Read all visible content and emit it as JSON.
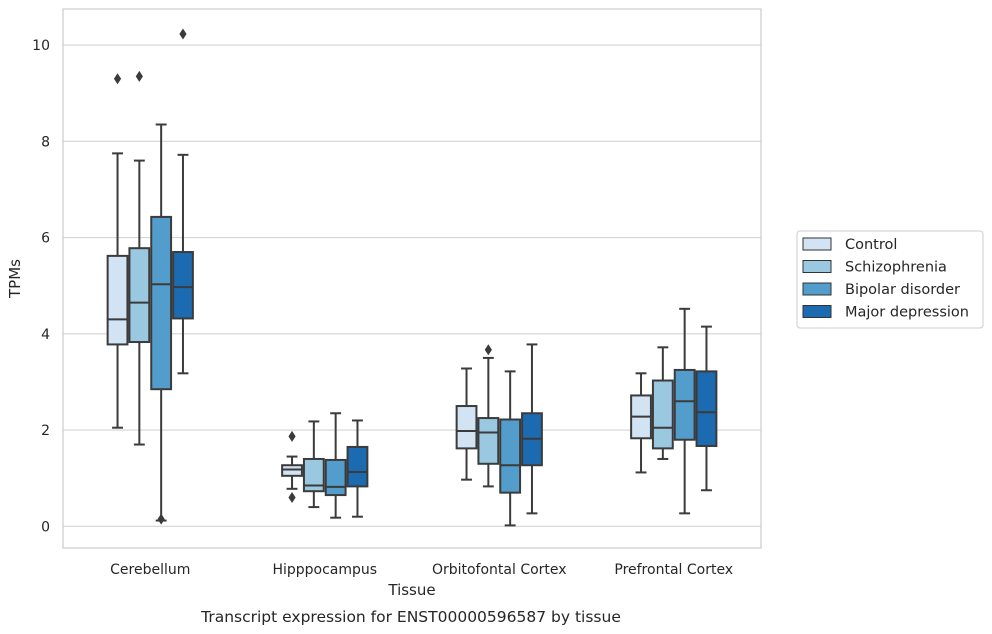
{
  "chart_data": {
    "type": "box",
    "xlabel": "Tissue",
    "ylabel": "TPMs",
    "caption": "Transcript expression for ENST00000596587 by tissue",
    "ylim": [
      -0.45,
      10.75
    ],
    "yticks": [
      0,
      2,
      4,
      6,
      8,
      10
    ],
    "grid": "horizontal",
    "legend_position": "right",
    "categories": [
      "Cerebellum",
      "Hipppocampus",
      "Orbitofontal Cortex",
      "Prefrontal Cortex"
    ],
    "series": [
      {
        "name": "Control",
        "color": "#d2e3f3",
        "boxes": [
          {
            "whisker_low": 2.05,
            "q1": 3.78,
            "median": 4.3,
            "q3": 5.62,
            "whisker_high": 7.75,
            "outliers": [
              9.3
            ]
          },
          {
            "whisker_low": 0.78,
            "q1": 1.05,
            "median": 1.18,
            "q3": 1.27,
            "whisker_high": 1.45,
            "outliers": [
              1.87,
              0.6
            ]
          },
          {
            "whisker_low": 0.97,
            "q1": 1.62,
            "median": 1.98,
            "q3": 2.5,
            "whisker_high": 3.28,
            "outliers": []
          },
          {
            "whisker_low": 1.12,
            "q1": 1.83,
            "median": 2.28,
            "q3": 2.72,
            "whisker_high": 3.18,
            "outliers": []
          }
        ]
      },
      {
        "name": "Schizophrenia",
        "color": "#9ac8e0",
        "boxes": [
          {
            "whisker_low": 1.7,
            "q1": 3.83,
            "median": 4.65,
            "q3": 5.78,
            "whisker_high": 7.6,
            "outliers": [
              9.35
            ]
          },
          {
            "whisker_low": 0.4,
            "q1": 0.73,
            "median": 0.85,
            "q3": 1.4,
            "whisker_high": 2.18,
            "outliers": []
          },
          {
            "whisker_low": 0.83,
            "q1": 1.3,
            "median": 1.95,
            "q3": 2.25,
            "whisker_high": 3.5,
            "outliers": [
              3.67
            ]
          },
          {
            "whisker_low": 1.4,
            "q1": 1.62,
            "median": 2.05,
            "q3": 3.03,
            "whisker_high": 3.72,
            "outliers": []
          }
        ]
      },
      {
        "name": "Bipolar disorder",
        "color": "#529dcc",
        "boxes": [
          {
            "whisker_low": 0.12,
            "q1": 2.85,
            "median": 5.03,
            "q3": 6.43,
            "whisker_high": 8.35,
            "outliers": [
              0.15
            ]
          },
          {
            "whisker_low": 0.18,
            "q1": 0.65,
            "median": 0.82,
            "q3": 1.38,
            "whisker_high": 2.35,
            "outliers": []
          },
          {
            "whisker_low": 0.02,
            "q1": 0.7,
            "median": 1.27,
            "q3": 2.22,
            "whisker_high": 3.22,
            "outliers": []
          },
          {
            "whisker_low": 0.27,
            "q1": 1.8,
            "median": 2.6,
            "q3": 3.25,
            "whisker_high": 4.52,
            "outliers": []
          }
        ]
      },
      {
        "name": "Major depression",
        "color": "#1c6aaf",
        "boxes": [
          {
            "whisker_low": 3.18,
            "q1": 4.32,
            "median": 4.97,
            "q3": 5.7,
            "whisker_high": 7.72,
            "outliers": [
              10.23
            ]
          },
          {
            "whisker_low": 0.2,
            "q1": 0.83,
            "median": 1.13,
            "q3": 1.65,
            "whisker_high": 2.2,
            "outliers": []
          },
          {
            "whisker_low": 0.27,
            "q1": 1.27,
            "median": 1.82,
            "q3": 2.35,
            "whisker_high": 3.78,
            "outliers": []
          },
          {
            "whisker_low": 0.75,
            "q1": 1.67,
            "median": 2.37,
            "q3": 3.22,
            "whisker_high": 4.15,
            "outliers": []
          }
        ]
      }
    ]
  }
}
